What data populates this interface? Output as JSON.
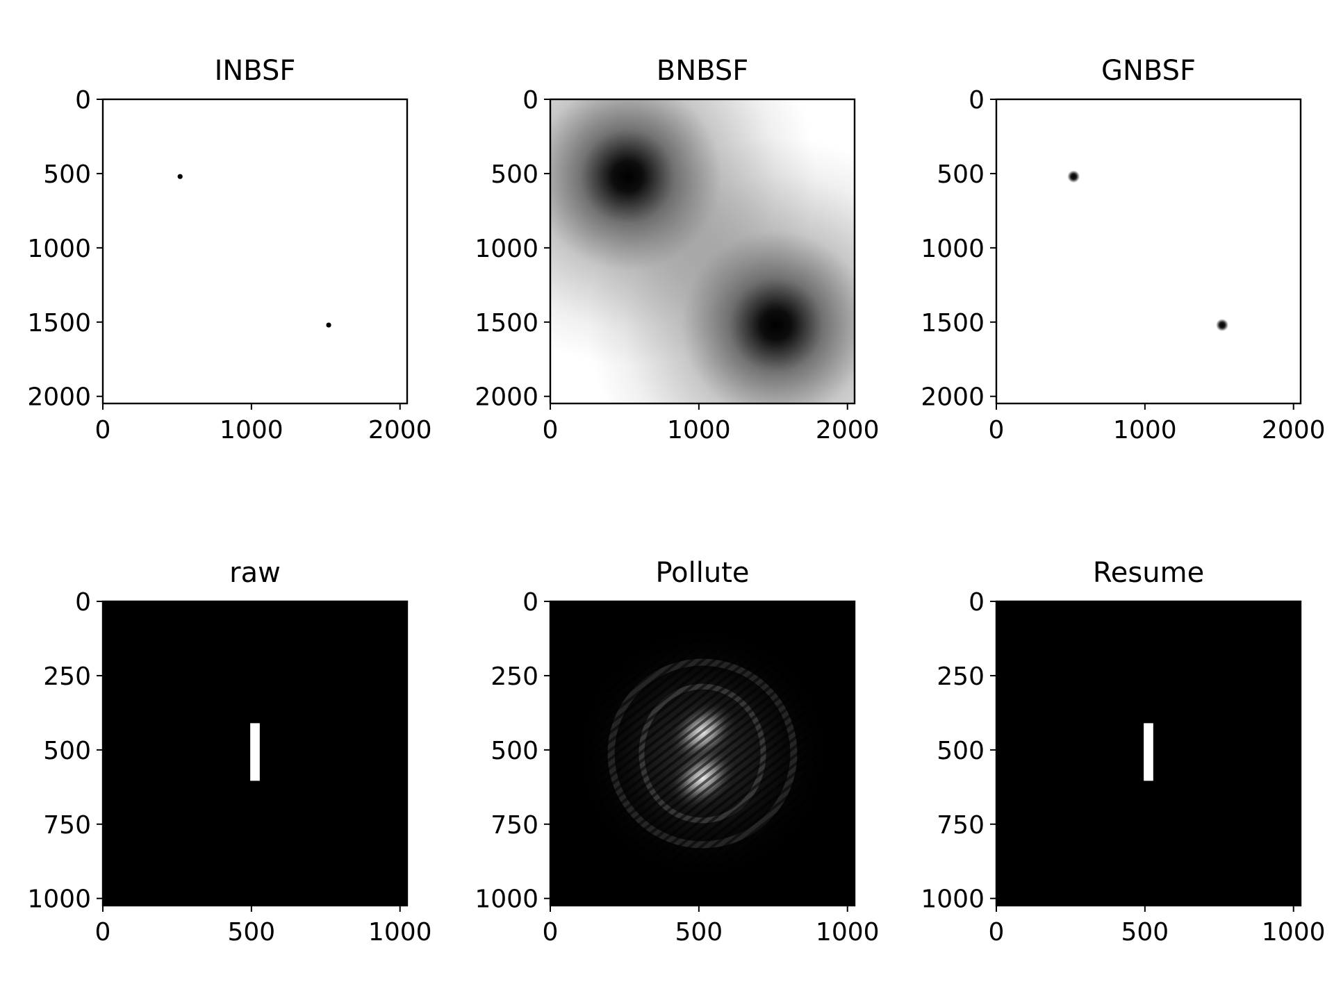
{
  "chart_data": [
    {
      "type": "heatmap",
      "title": "INBSF",
      "extent": 2048,
      "xticks": [
        0,
        1000,
        2000
      ],
      "yticks": [
        0,
        500,
        1000,
        1500,
        2000
      ],
      "colormap": "gray",
      "background": "#ffffff",
      "features": [
        {
          "kind": "dot",
          "x": 520,
          "y": 520,
          "radius": 12,
          "color": "#000000"
        },
        {
          "kind": "dot",
          "x": 1520,
          "y": 1520,
          "radius": 12,
          "color": "#000000"
        }
      ]
    },
    {
      "type": "heatmap",
      "title": "BNBSF",
      "extent": 2048,
      "xticks": [
        0,
        1000,
        2000
      ],
      "yticks": [
        0,
        500,
        1000,
        1500,
        2000
      ],
      "colormap": "gray",
      "background": "#ffffff",
      "features": [
        {
          "kind": "dark_blur",
          "x": 520,
          "y": 520
        },
        {
          "kind": "dark_blur",
          "x": 1520,
          "y": 1520
        }
      ]
    },
    {
      "type": "heatmap",
      "title": "GNBSF",
      "extent": 2048,
      "xticks": [
        0,
        1000,
        2000
      ],
      "yticks": [
        0,
        500,
        1000,
        1500,
        2000
      ],
      "colormap": "gray",
      "background": "#ffffff",
      "features": [
        {
          "kind": "soft_dot",
          "x": 520,
          "y": 520,
          "radius": 26
        },
        {
          "kind": "soft_dot",
          "x": 1520,
          "y": 1520,
          "radius": 26
        }
      ]
    },
    {
      "type": "heatmap",
      "title": "raw",
      "extent": 1024,
      "xticks": [
        0,
        500,
        1000
      ],
      "yticks": [
        0,
        250,
        500,
        750,
        1000
      ],
      "colormap": "gray",
      "background": "#000000",
      "features": [
        {
          "kind": "rect",
          "x0": 496,
          "x1": 528,
          "y0": 410,
          "y1": 604,
          "color": "#ffffff"
        }
      ]
    },
    {
      "type": "heatmap",
      "title": "Pollute",
      "extent": 1024,
      "xticks": [
        0,
        500,
        1000
      ],
      "yticks": [
        0,
        250,
        500,
        750,
        1000
      ],
      "colormap": "gray",
      "background": "#000000",
      "features": [
        {
          "kind": "glow",
          "x": 512,
          "y": 440
        },
        {
          "kind": "glow",
          "x": 512,
          "y": 595
        }
      ]
    },
    {
      "type": "heatmap",
      "title": "Resume",
      "extent": 1024,
      "xticks": [
        0,
        500,
        1000
      ],
      "yticks": [
        0,
        250,
        500,
        750,
        1000
      ],
      "colormap": "gray",
      "background": "#000000",
      "features": [
        {
          "kind": "rect",
          "x0": 496,
          "x1": 528,
          "y0": 410,
          "y1": 604,
          "color": "#ffffff"
        }
      ]
    }
  ]
}
